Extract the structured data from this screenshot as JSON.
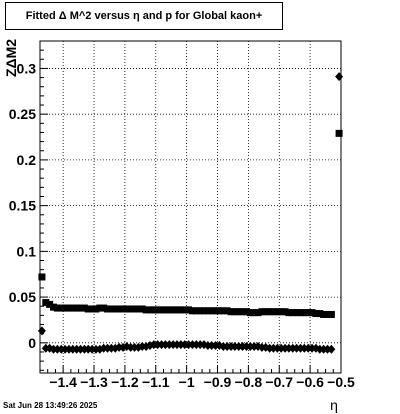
{
  "header": {
    "title": "Fitted Δ M^2 versus η and p for Global kaon+"
  },
  "footer": {
    "datestamp": "Sat Jun 28 13:49:26 2025"
  },
  "chart_data": {
    "type": "scatter",
    "title": "Fitted Δ M^2 versus η and p for Global kaon+",
    "xlabel": "η",
    "ylabel": "ZΔM2",
    "xlim": [
      -1.475,
      -0.5
    ],
    "ylim": [
      -0.033,
      0.33
    ],
    "grid": true,
    "xticks": [
      {
        "v": -1.4,
        "label": "−1.4"
      },
      {
        "v": -1.3,
        "label": "−1.3"
      },
      {
        "v": -1.2,
        "label": "−1.2"
      },
      {
        "v": -1.1,
        "label": "−1.1"
      },
      {
        "v": -1.0,
        "label": "−1"
      },
      {
        "v": -0.9,
        "label": "−0.9"
      },
      {
        "v": -0.8,
        "label": "−0.8"
      },
      {
        "v": -0.7,
        "label": "−0.7"
      },
      {
        "v": -0.6,
        "label": "−0.6"
      },
      {
        "v": -0.5,
        "label": "−0.5"
      }
    ],
    "yticks": [
      {
        "v": 0,
        "label": "0"
      },
      {
        "v": 0.05,
        "label": "0.05"
      },
      {
        "v": 0.1,
        "label": "0.1"
      },
      {
        "v": 0.15,
        "label": "0.15"
      },
      {
        "v": 0.2,
        "label": "0.2"
      },
      {
        "v": 0.25,
        "label": "0.25"
      },
      {
        "v": 0.3,
        "label": "0.3"
      }
    ],
    "series": [
      {
        "marker": "square",
        "points": [
          [
            -1.4688,
            0.072
          ],
          [
            -1.4562,
            0.044
          ],
          [
            -1.4438,
            0.042
          ],
          [
            -1.4312,
            0.039
          ],
          [
            -1.4188,
            0.038
          ],
          [
            -1.4062,
            0.038
          ],
          [
            -1.3938,
            0.038
          ],
          [
            -1.3812,
            0.038
          ],
          [
            -1.3688,
            0.038
          ],
          [
            -1.3562,
            0.038
          ],
          [
            -1.3438,
            0.038
          ],
          [
            -1.3312,
            0.038
          ],
          [
            -1.3188,
            0.037
          ],
          [
            -1.3062,
            0.037
          ],
          [
            -1.2938,
            0.037
          ],
          [
            -1.2812,
            0.038
          ],
          [
            -1.2688,
            0.038
          ],
          [
            -1.2562,
            0.037
          ],
          [
            -1.2438,
            0.037
          ],
          [
            -1.2312,
            0.037
          ],
          [
            -1.2188,
            0.037
          ],
          [
            -1.2062,
            0.037
          ],
          [
            -1.1938,
            0.037
          ],
          [
            -1.1812,
            0.037
          ],
          [
            -1.1688,
            0.037
          ],
          [
            -1.1562,
            0.037
          ],
          [
            -1.1438,
            0.037
          ],
          [
            -1.1312,
            0.036
          ],
          [
            -1.1188,
            0.036
          ],
          [
            -1.1062,
            0.036
          ],
          [
            -1.0938,
            0.036
          ],
          [
            -1.0812,
            0.036
          ],
          [
            -1.0688,
            0.036
          ],
          [
            -1.0562,
            0.036
          ],
          [
            -1.0438,
            0.036
          ],
          [
            -1.0312,
            0.036
          ],
          [
            -1.0188,
            0.036
          ],
          [
            -1.0062,
            0.036
          ],
          [
            -0.9938,
            0.036
          ],
          [
            -0.9812,
            0.035
          ],
          [
            -0.9688,
            0.035
          ],
          [
            -0.9562,
            0.035
          ],
          [
            -0.9438,
            0.035
          ],
          [
            -0.9312,
            0.035
          ],
          [
            -0.9188,
            0.035
          ],
          [
            -0.9062,
            0.035
          ],
          [
            -0.8938,
            0.035
          ],
          [
            -0.8812,
            0.035
          ],
          [
            -0.8688,
            0.035
          ],
          [
            -0.8562,
            0.034
          ],
          [
            -0.8438,
            0.034
          ],
          [
            -0.8312,
            0.034
          ],
          [
            -0.8188,
            0.034
          ],
          [
            -0.8062,
            0.034
          ],
          [
            -0.7938,
            0.033
          ],
          [
            -0.7812,
            0.033
          ],
          [
            -0.7688,
            0.033
          ],
          [
            -0.7562,
            0.034
          ],
          [
            -0.7438,
            0.034
          ],
          [
            -0.7312,
            0.034
          ],
          [
            -0.7188,
            0.034
          ],
          [
            -0.7062,
            0.034
          ],
          [
            -0.6938,
            0.034
          ],
          [
            -0.6812,
            0.034
          ],
          [
            -0.6688,
            0.033
          ],
          [
            -0.6562,
            0.033
          ],
          [
            -0.6438,
            0.033
          ],
          [
            -0.6312,
            0.033
          ],
          [
            -0.6188,
            0.033
          ],
          [
            -0.6062,
            0.033
          ],
          [
            -0.5938,
            0.033
          ],
          [
            -0.5812,
            0.032
          ],
          [
            -0.5688,
            0.032
          ],
          [
            -0.5562,
            0.031
          ],
          [
            -0.5438,
            0.031
          ],
          [
            -0.5312,
            0.031
          ],
          [
            -0.5062,
            0.229
          ]
        ]
      },
      {
        "marker": "diamond",
        "points": [
          [
            -1.4688,
            0.013
          ],
          [
            -1.4562,
            -0.006
          ],
          [
            -1.4438,
            -0.006
          ],
          [
            -1.4312,
            -0.007
          ],
          [
            -1.4188,
            -0.007
          ],
          [
            -1.4062,
            -0.007
          ],
          [
            -1.3938,
            -0.007
          ],
          [
            -1.3812,
            -0.007
          ],
          [
            -1.3688,
            -0.007
          ],
          [
            -1.3562,
            -0.007
          ],
          [
            -1.3438,
            -0.007
          ],
          [
            -1.3312,
            -0.007
          ],
          [
            -1.3188,
            -0.007
          ],
          [
            -1.3062,
            -0.007
          ],
          [
            -1.2938,
            -0.007
          ],
          [
            -1.2812,
            -0.007
          ],
          [
            -1.2688,
            -0.006
          ],
          [
            -1.2562,
            -0.006
          ],
          [
            -1.2438,
            -0.006
          ],
          [
            -1.2312,
            -0.006
          ],
          [
            -1.2188,
            -0.005
          ],
          [
            -1.2062,
            -0.005
          ],
          [
            -1.1938,
            -0.004
          ],
          [
            -1.1812,
            -0.005
          ],
          [
            -1.1688,
            -0.005
          ],
          [
            -1.1562,
            -0.005
          ],
          [
            -1.1438,
            -0.004
          ],
          [
            -1.1312,
            -0.004
          ],
          [
            -1.1188,
            -0.003
          ],
          [
            -1.1062,
            -0.002
          ],
          [
            -1.0938,
            -0.002
          ],
          [
            -1.0812,
            -0.002
          ],
          [
            -1.0688,
            -0.002
          ],
          [
            -1.0562,
            -0.002
          ],
          [
            -1.0438,
            -0.002
          ],
          [
            -1.0312,
            -0.002
          ],
          [
            -1.0188,
            -0.002
          ],
          [
            -1.0062,
            -0.002
          ],
          [
            -0.9938,
            -0.002
          ],
          [
            -0.9812,
            -0.002
          ],
          [
            -0.9688,
            -0.002
          ],
          [
            -0.9562,
            -0.002
          ],
          [
            -0.9438,
            -0.002
          ],
          [
            -0.9312,
            -0.003
          ],
          [
            -0.9188,
            -0.003
          ],
          [
            -0.9062,
            -0.003
          ],
          [
            -0.8938,
            -0.003
          ],
          [
            -0.8812,
            -0.004
          ],
          [
            -0.8688,
            -0.004
          ],
          [
            -0.8562,
            -0.004
          ],
          [
            -0.8438,
            -0.004
          ],
          [
            -0.8312,
            -0.004
          ],
          [
            -0.8188,
            -0.004
          ],
          [
            -0.8062,
            -0.004
          ],
          [
            -0.7938,
            -0.004
          ],
          [
            -0.7812,
            -0.004
          ],
          [
            -0.7688,
            -0.004
          ],
          [
            -0.7562,
            -0.005
          ],
          [
            -0.7438,
            -0.005
          ],
          [
            -0.7312,
            -0.006
          ],
          [
            -0.7188,
            -0.006
          ],
          [
            -0.7062,
            -0.006
          ],
          [
            -0.6938,
            -0.006
          ],
          [
            -0.6812,
            -0.006
          ],
          [
            -0.6688,
            -0.006
          ],
          [
            -0.6562,
            -0.006
          ],
          [
            -0.6438,
            -0.006
          ],
          [
            -0.6312,
            -0.006
          ],
          [
            -0.6188,
            -0.006
          ],
          [
            -0.6062,
            -0.006
          ],
          [
            -0.5938,
            -0.006
          ],
          [
            -0.5812,
            -0.006
          ],
          [
            -0.5688,
            -0.007
          ],
          [
            -0.5562,
            -0.007
          ],
          [
            -0.5438,
            -0.007
          ],
          [
            -0.5312,
            -0.007
          ],
          [
            -0.5062,
            0.291
          ]
        ]
      }
    ]
  }
}
